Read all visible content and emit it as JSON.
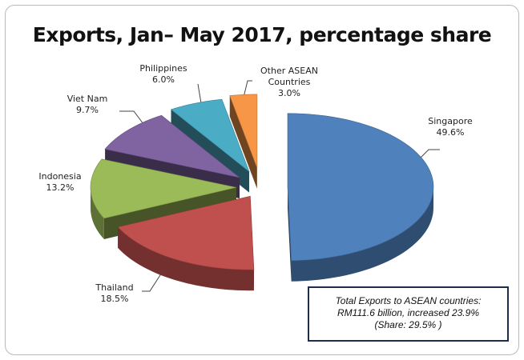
{
  "chart_data": {
    "type": "pie",
    "title": "Exports, Jan– May 2017, percentage share",
    "slices": [
      {
        "label": "Singapore",
        "value": 49.6,
        "value_label": "49.6%",
        "color": "#4f81bd"
      },
      {
        "label": "Thailand",
        "value": 18.5,
        "value_label": "18.5%",
        "color": "#c0504d"
      },
      {
        "label": "Indonesia",
        "value": 13.2,
        "value_label": "13.2%",
        "color": "#9bbb59"
      },
      {
        "label": "Viet Nam",
        "value": 9.7,
        "value_label": "9.7%",
        "color": "#8064a2"
      },
      {
        "label": "Philippines",
        "value": 6.0,
        "value_label": "6.0%",
        "color": "#4bacc6"
      },
      {
        "label_lines": [
          "Other ASEAN",
          "Countries"
        ],
        "value": 3.0,
        "value_label": "3.0%",
        "color": "#f79646"
      }
    ],
    "style": "3d-exploded"
  },
  "summary": {
    "line1": "Total Exports to ASEAN countries:",
    "line2": "RM111.6 billion, increased 23.9%",
    "line3": "(Share: 29.5% )"
  }
}
